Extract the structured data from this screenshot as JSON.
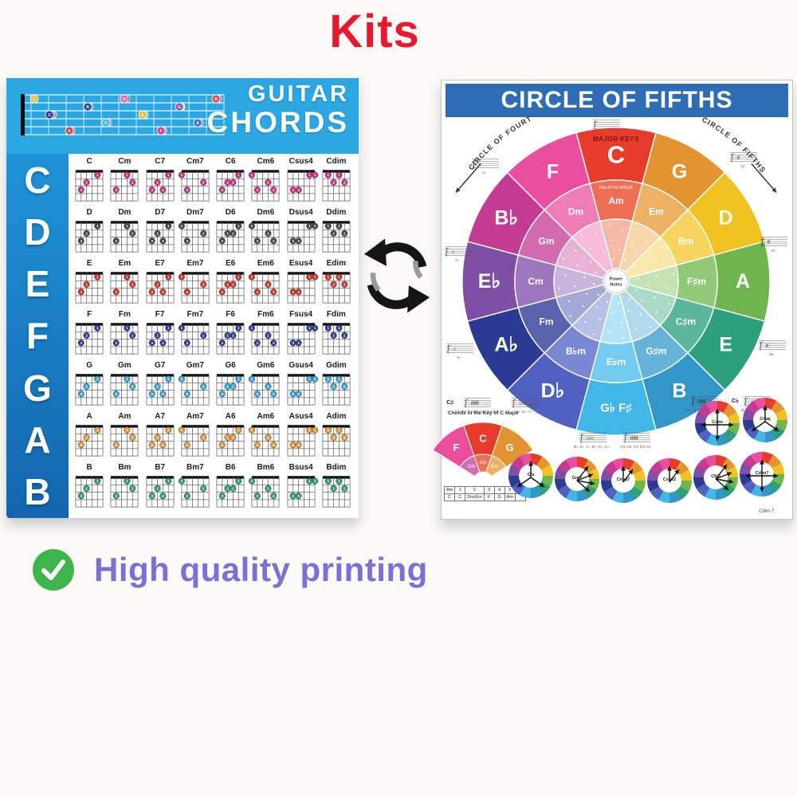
{
  "page": {
    "background": "#fbfaf6",
    "title": "Kits",
    "title_color": "#e8192f",
    "feature": {
      "label": "High quality printing",
      "color": "#7b6fd8",
      "check_color": "#3db54a"
    }
  },
  "guitar_poster": {
    "title_line1": "GUITAR",
    "title_line2": "CHORDS",
    "header_bg": "#2ba7e2",
    "sidebar_top": "#1f93d8",
    "sidebar_bottom": "#1366ae",
    "header_dot_colors": [
      "#e8c33a",
      "#d63d8e",
      "#7a58c4",
      "#3b6fd6",
      "#d64545",
      "#2b3c8f",
      "#43b5e8",
      "#e2699f"
    ],
    "chord_shapes": {
      "": [
        [
          1,
          3
        ],
        [
          2,
          2
        ],
        [
          4,
          1
        ]
      ],
      "m": [
        [
          1,
          3
        ],
        [
          3,
          1
        ],
        [
          4,
          2
        ]
      ],
      "7": [
        [
          1,
          3
        ],
        [
          2,
          2
        ],
        [
          3,
          3
        ],
        [
          4,
          1
        ]
      ],
      "m7": [
        [
          0,
          1
        ],
        [
          1,
          3
        ],
        [
          4,
          2
        ]
      ],
      "6": [
        [
          1,
          3
        ],
        [
          2,
          2
        ],
        [
          3,
          2
        ],
        [
          4,
          1
        ]
      ],
      "m6": [
        [
          0,
          1
        ],
        [
          1,
          3
        ],
        [
          3,
          2
        ],
        [
          4,
          3
        ]
      ],
      "sus4": [
        [
          1,
          3
        ],
        [
          2,
          3
        ],
        [
          4,
          1
        ],
        [
          5,
          1
        ]
      ],
      "dim": [
        [
          1,
          1
        ],
        [
          2,
          2
        ],
        [
          3,
          1
        ],
        [
          4,
          2
        ]
      ]
    },
    "rows": [
      {
        "letter": "C",
        "dot_color": "#cf3188",
        "chords": [
          "C",
          "Cm",
          "C7",
          "Cm7",
          "C6",
          "Cm6",
          "Csus4",
          "Cdim"
        ]
      },
      {
        "letter": "D",
        "dot_color": "#4a4552",
        "chords": [
          "D",
          "Dm",
          "D7",
          "Dm7",
          "D6",
          "Dm6",
          "Dsus4",
          "Ddim"
        ]
      },
      {
        "letter": "E",
        "dot_color": "#d63226",
        "chords": [
          "E",
          "Em",
          "E7",
          "Em7",
          "E6",
          "Em6",
          "Esus4",
          "Edim"
        ]
      },
      {
        "letter": "F",
        "dot_color": "#2e3f92",
        "chords": [
          "F",
          "Fm",
          "F7",
          "Fm7",
          "F6",
          "Fm6",
          "Fsus4",
          "Fdim"
        ]
      },
      {
        "letter": "G",
        "dot_color": "#3ba6d9",
        "chords": [
          "G",
          "Gm",
          "G7",
          "Gm7",
          "G6",
          "Gm6",
          "Gsus4",
          "Gdim"
        ]
      },
      {
        "letter": "A",
        "dot_color": "#e69a3c",
        "chords": [
          "A",
          "Am",
          "A7",
          "Am7",
          "A6",
          "Am6",
          "Asus4",
          "Adim"
        ]
      },
      {
        "letter": "B",
        "dot_color": "#2f9f6e",
        "chords": [
          "B",
          "Bm",
          "B7",
          "Bm7",
          "B6",
          "Bm6",
          "Bsus4",
          "Bdim"
        ]
      }
    ]
  },
  "fifths_poster": {
    "title": "CIRCLE OF FIFTHS",
    "header_bg": "#2f6cb6",
    "left_arc_label": "CIRCLE OF FOURTHS",
    "right_arc_label": "CIRCLE OF FIFTHS",
    "major_keys_label": "MAJOR KEYS",
    "relative_minor_label": "RELATIVE MINOR",
    "center_label_line1": "Power",
    "center_label_line2": "Notes",
    "wheel": [
      {
        "major": "C",
        "minor": "Am",
        "color": "#e73b2c",
        "minor_color": "#ee6f55",
        "pale": "#f6b9a5"
      },
      {
        "major": "G",
        "minor": "Em",
        "color": "#e39431",
        "minor_color": "#ecb162",
        "pale": "#f5d7ab"
      },
      {
        "major": "D",
        "minor": "Bm",
        "color": "#f1c322",
        "minor_color": "#f5d55e",
        "pale": "#f9e8a8"
      },
      {
        "major": "A",
        "minor": "F♯m",
        "color": "#6eb64d",
        "minor_color": "#92c977",
        "pale": "#c6e3b4"
      },
      {
        "major": "E",
        "minor": "C♯m",
        "color": "#2d9f7c",
        "minor_color": "#5bb79b",
        "pale": "#a9d9c8"
      },
      {
        "major": "B",
        "minor": "G♯m",
        "color": "#3396c9",
        "minor_color": "#66b3da",
        "pale": "#b0d9ec"
      },
      {
        "major": "G♭ F♯",
        "minor": "E♭m",
        "color": "#41b7e8",
        "minor_color": "#74cbf0",
        "pale": "#b6e4f7"
      },
      {
        "major": "D♭",
        "minor": "B♭m",
        "color": "#5061c1",
        "minor_color": "#7a87d2",
        "pale": "#b9c0e8"
      },
      {
        "major": "A♭",
        "minor": "Fm",
        "color": "#2b3b92",
        "minor_color": "#5862ad",
        "pale": "#a3a9d3"
      },
      {
        "major": "E♭",
        "minor": "Cm",
        "color": "#7e4fa5",
        "minor_color": "#9c77bd",
        "pale": "#c9b4dd"
      },
      {
        "major": "B♭",
        "minor": "Gm",
        "color": "#c33b92",
        "minor_color": "#d36cae",
        "pale": "#e8b2d5"
      },
      {
        "major": "F",
        "minor": "Dm",
        "color": "#e94f9c",
        "minor_color": "#f07cb5",
        "pale": "#f8bcda"
      }
    ],
    "ring_staffs": [
      {
        "caption": ""
      },
      {
        "caption": "1♭"
      },
      {
        "caption": "2♭"
      },
      {
        "caption": "3♭"
      },
      {
        "caption": "1♯"
      },
      {
        "caption": "2♯"
      },
      {
        "caption": "3♯"
      }
    ],
    "bottom": {
      "fan_caption": "Chords in the Key of C Major",
      "fan": {
        "outer": [
          {
            "label": "F",
            "color": "#e94f9c"
          },
          {
            "label": "C",
            "color": "#e73b2c"
          },
          {
            "label": "G",
            "color": "#e39431"
          }
        ],
        "inner": [
          {
            "label": "Dm",
            "color": "#d36cae"
          },
          {
            "label": "Am",
            "color": "#ee6f55"
          },
          {
            "label": "Em",
            "color": "#ecb162"
          }
        ]
      },
      "table": [
        [
          "Am",
          "1",
          "2",
          "3",
          "4",
          "5",
          "6"
        ],
        [
          "C",
          "C",
          "Dm/Em",
          "F",
          "G",
          "Am",
          ""
        ]
      ],
      "staff_groups": [
        {
          "label": "C♯",
          "caption": "F♯ C♯ G♯ D♯ A♯ E♯ B♯"
        },
        {
          "label": "",
          "caption": "B♭ E♭ A♭"
        },
        {
          "label": "",
          "caption": "B♭ E♭ A♭ D♭ G♭ C♭"
        },
        {
          "label": "",
          "caption": "F♯ C♯ G♯ D♯ A♯"
        },
        {
          "label": "",
          "caption": "F♯ C♯ G♯ D♯ A♯ E♯"
        },
        {
          "label": "C♭",
          "caption": "B♭ E♭ A♭ D♭ G♭"
        }
      ],
      "mini_circles_top": [
        {
          "label": "Cdim",
          "arrows": "cross"
        },
        {
          "label": "Cmaj",
          "arrows": "tri"
        }
      ],
      "mini_circles": [
        {
          "label": "C/a",
          "arrows": "tri"
        },
        {
          "label": "Gm7",
          "arrows": "fan"
        },
        {
          "label": "Cmaj7",
          "arrows": "up"
        },
        {
          "label": "Csus2",
          "arrows": "up"
        },
        {
          "label": "C6/9",
          "arrows": "fan"
        },
        {
          "label": "Cdim7",
          "arrows": "cross"
        }
      ],
      "mini_caption": "Cdim 7"
    }
  }
}
